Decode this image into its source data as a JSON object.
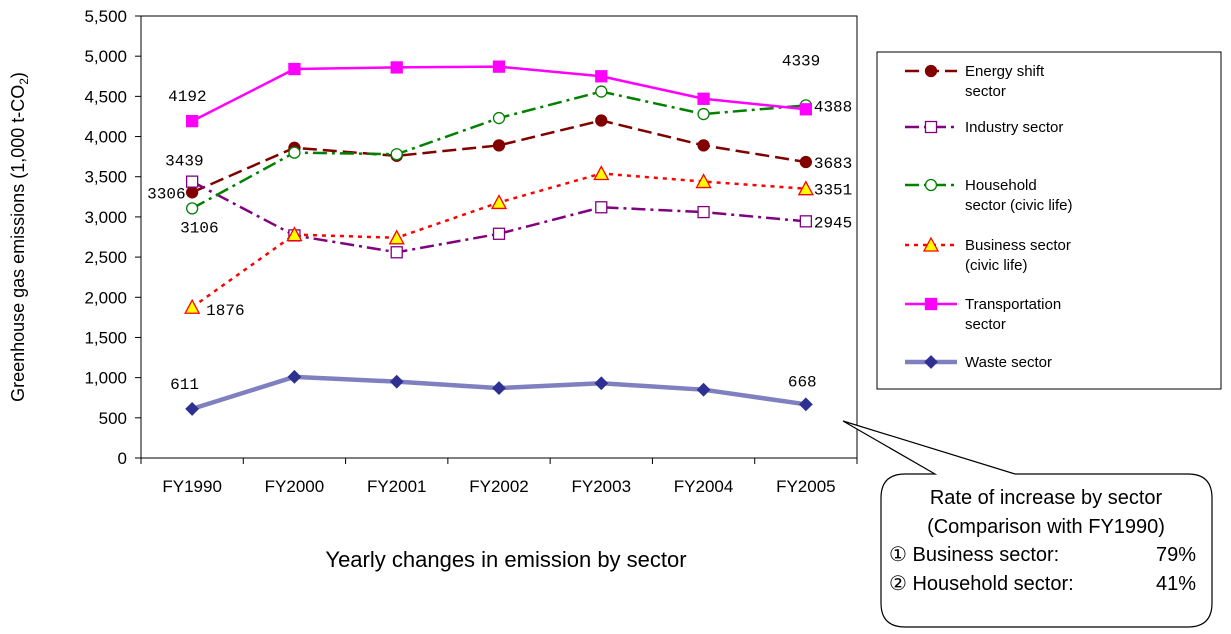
{
  "chart_data": {
    "type": "line",
    "title": "Yearly changes in emission by sector",
    "ylabel_main": "Greenhouse gas emissions (1,000 t-CO",
    "ylabel_sub": "2",
    "ylabel_end": ")",
    "xlabel": "",
    "ylim": [
      0,
      5500
    ],
    "ytick_step": 500,
    "ytick_labels": [
      "0",
      "500",
      "1,000",
      "1,500",
      "2,000",
      "2,500",
      "3,000",
      "3,500",
      "4,000",
      "4,500",
      "5,000",
      "5,500"
    ],
    "grid": false,
    "legend_position": "right",
    "categories": [
      "FY1990",
      "FY2000",
      "FY2001",
      "FY2002",
      "FY2003",
      "FY2004",
      "FY2005"
    ],
    "series": [
      {
        "name": "Energy shift sector",
        "legend_lines": [
          "Energy shift",
          "sector"
        ],
        "values": [
          3306,
          3860,
          3760,
          3890,
          4200,
          3890,
          3683
        ],
        "color": "#800000",
        "dash": "14,6",
        "marker": "filled-circle",
        "marker_fill": "#800000",
        "marker_stroke": "#800000",
        "stroke_width": 2.5,
        "labels": [
          {
            "index": 0,
            "text": "3306",
            "dx": -45,
            "dy": 6
          },
          {
            "index": 6,
            "text": "3683",
            "dx": 8,
            "dy": 6
          }
        ]
      },
      {
        "name": "Industry sector",
        "legend_lines": [
          "Industry sector"
        ],
        "values": [
          3439,
          2770,
          2560,
          2790,
          3120,
          3060,
          2945
        ],
        "color": "#800080",
        "dash": "14,5,3,5",
        "marker": "open-square",
        "marker_fill": "#ffffff",
        "marker_stroke": "#800080",
        "stroke_width": 2.5,
        "labels": [
          {
            "index": 0,
            "text": "3439",
            "dx": -27,
            "dy": -16
          },
          {
            "index": 6,
            "text": "2945",
            "dx": 8,
            "dy": 6
          }
        ]
      },
      {
        "name": "Household sector (civic life)",
        "legend_lines": [
          "Household",
          "sector (civic life)"
        ],
        "values": [
          3106,
          3800,
          3780,
          4230,
          4560,
          4280,
          4388
        ],
        "color": "#008000",
        "dash": "14,5,3,5",
        "marker": "open-circle",
        "marker_fill": "#ffffff",
        "marker_stroke": "#008000",
        "stroke_width": 2.5,
        "labels": [
          {
            "index": 0,
            "text": "3106",
            "dx": -12,
            "dy": 24
          },
          {
            "index": 6,
            "text": "4388",
            "dx": 8,
            "dy": 6
          }
        ]
      },
      {
        "name": "Business sector (civic life)",
        "legend_lines": [
          "Business sector",
          "(civic life)"
        ],
        "values": [
          1876,
          2780,
          2740,
          3180,
          3540,
          3440,
          3351
        ],
        "color": "#ff0000",
        "dash": "4,5",
        "marker": "triangle",
        "marker_fill": "#ffff00",
        "marker_stroke": "#ff0000",
        "stroke_width": 2.5,
        "labels": [
          {
            "index": 0,
            "text": "1876",
            "dx": 14,
            "dy": 8
          },
          {
            "index": 6,
            "text": "3351",
            "dx": 8,
            "dy": 6
          }
        ]
      },
      {
        "name": "Transportation sector",
        "legend_lines": [
          "Transportation",
          "sector"
        ],
        "values": [
          4192,
          4840,
          4860,
          4870,
          4750,
          4470,
          4339
        ],
        "color": "#ff00ff",
        "dash": "",
        "marker": "filled-square",
        "marker_fill": "#ff00ff",
        "marker_stroke": "#ff00ff",
        "stroke_width": 2.5,
        "labels": [
          {
            "index": 0,
            "text": "4192",
            "dx": -24,
            "dy": -20
          },
          {
            "index": 6,
            "text": "4339",
            "dx": -24,
            "dy": -44
          }
        ]
      },
      {
        "name": "Waste sector",
        "legend_lines": [
          "Waste sector"
        ],
        "values": [
          611,
          1010,
          950,
          870,
          930,
          850,
          668
        ],
        "color": "#8080c0",
        "dash": "",
        "marker": "diamond",
        "marker_fill": "#2e3192",
        "marker_stroke": "#2e3192",
        "stroke_width": 4.5,
        "labels": [
          {
            "index": 0,
            "text": "611",
            "dx": -22,
            "dy": -20
          },
          {
            "index": 6,
            "text": "668",
            "dx": -18,
            "dy": -18
          }
        ]
      }
    ],
    "callout": {
      "lines": [
        "Rate of increase by sector",
        "(Comparison with FY1990)",
        "① Business sector:",
        "② Household sector:"
      ],
      "values": [
        "79%",
        "41%"
      ]
    }
  }
}
